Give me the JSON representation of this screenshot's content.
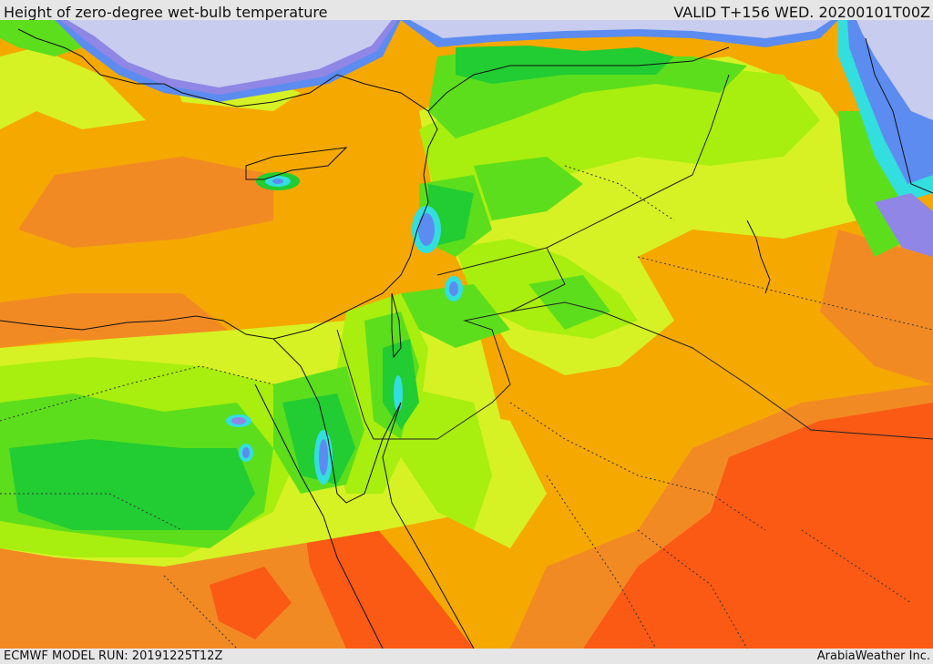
{
  "header": {
    "title": "Height of zero-degree wet-bulb temperature",
    "valid_time": "VALID T+156 WED. 20200101T00Z"
  },
  "footer": {
    "model_run": "ECMWF MODEL RUN: 20191225T12Z",
    "credit": "ArabiaWeather Inc."
  },
  "palette": {
    "sea_cold": "#c8ccee",
    "violet": "#8f86e6",
    "blue": "#5c8cf0",
    "cyan": "#33dede",
    "green_dark": "#22cc33",
    "green": "#5cde1c",
    "green_light": "#a8ee0e",
    "yellow_green": "#d6f224",
    "orange_light": "#f5a800",
    "orange": "#f28a24",
    "red_orange": "#fa5a14"
  }
}
